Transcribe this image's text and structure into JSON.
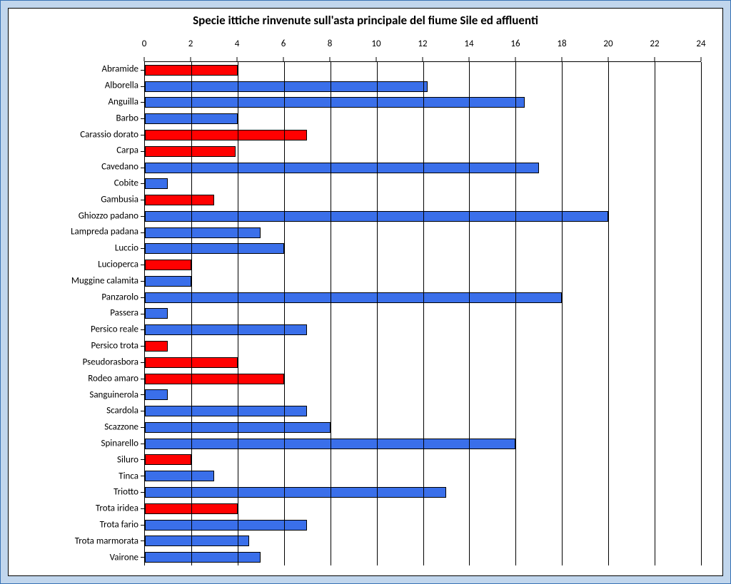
{
  "chart": {
    "type": "bar-horizontal",
    "title": "Specie ittiche rinvenute sull'asta principale del fiume Sile ed affluenti",
    "title_fontsize": 17,
    "title_fontweight": "bold",
    "frame_background": "#c1d6ed",
    "plot_background": "#ffffff",
    "grid_color": "#000000",
    "axis_color": "#000000",
    "bar_border_color": "#000000",
    "colors": {
      "red": "#ff0000",
      "blue": "#3a6fea"
    },
    "xaxis": {
      "min": 0,
      "max": 24,
      "tick_step": 2,
      "ticks": [
        0,
        2,
        4,
        6,
        8,
        10,
        12,
        14,
        16,
        18,
        20,
        22,
        24
      ],
      "label_fontsize": 13
    },
    "yaxis": {
      "label_fontsize": 13
    },
    "bar_width_ratio": 0.66,
    "series": [
      {
        "label": "Abramide",
        "value": 4,
        "color": "red"
      },
      {
        "label": "Alborella",
        "value": 12.2,
        "color": "blue"
      },
      {
        "label": "Anguilla",
        "value": 16.4,
        "color": "blue"
      },
      {
        "label": "Barbo",
        "value": 4,
        "color": "blue"
      },
      {
        "label": "Carassio dorato",
        "value": 7,
        "color": "red"
      },
      {
        "label": "Carpa",
        "value": 3.9,
        "color": "red"
      },
      {
        "label": "Cavedano",
        "value": 17,
        "color": "blue"
      },
      {
        "label": "Cobite",
        "value": 1,
        "color": "blue"
      },
      {
        "label": "Gambusia",
        "value": 3,
        "color": "red"
      },
      {
        "label": "Ghiozzo padano",
        "value": 20,
        "color": "blue"
      },
      {
        "label": "Lampreda padana",
        "value": 5,
        "color": "blue"
      },
      {
        "label": "Luccio",
        "value": 6,
        "color": "blue"
      },
      {
        "label": "Lucioperca",
        "value": 2,
        "color": "red"
      },
      {
        "label": "Muggine calamita",
        "value": 2,
        "color": "blue"
      },
      {
        "label": "Panzarolo",
        "value": 18,
        "color": "blue"
      },
      {
        "label": "Passera",
        "value": 1,
        "color": "blue"
      },
      {
        "label": "Persico reale",
        "value": 7,
        "color": "blue"
      },
      {
        "label": "Persico trota",
        "value": 1,
        "color": "red"
      },
      {
        "label": "Pseudorasbora",
        "value": 4,
        "color": "red"
      },
      {
        "label": "Rodeo amaro",
        "value": 6,
        "color": "red"
      },
      {
        "label": "Sanguinerola",
        "value": 1,
        "color": "blue"
      },
      {
        "label": "Scardola",
        "value": 7,
        "color": "blue"
      },
      {
        "label": "Scazzone",
        "value": 8,
        "color": "blue"
      },
      {
        "label": "Spinarello",
        "value": 16,
        "color": "blue"
      },
      {
        "label": "Siluro",
        "value": 2,
        "color": "red"
      },
      {
        "label": "Tinca",
        "value": 3,
        "color": "blue"
      },
      {
        "label": "Triotto",
        "value": 13,
        "color": "blue"
      },
      {
        "label": "Trota iridea",
        "value": 4,
        "color": "red"
      },
      {
        "label": "Trota fario",
        "value": 7,
        "color": "blue"
      },
      {
        "label": "Trota marmorata",
        "value": 4.5,
        "color": "blue"
      },
      {
        "label": "Vairone",
        "value": 5,
        "color": "blue"
      }
    ]
  }
}
